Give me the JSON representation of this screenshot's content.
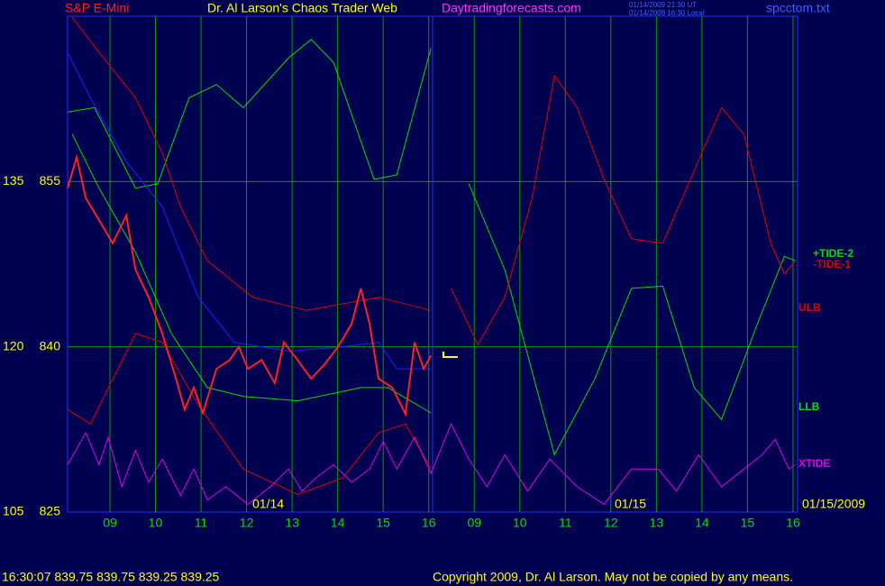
{
  "chart_data": {
    "type": "line",
    "title": "Dr. Al Larson's Chaos Trader Web",
    "symbol": "S&P E-Mini",
    "site": "Daytradingforecasts.com",
    "timestamps": [
      "01/14/2009 21:30 UT",
      "01/14/2009 16:30 Local"
    ],
    "file": "spcctom.txt",
    "date_labels": [
      "01/14",
      "01/15",
      "01/15/2009"
    ],
    "status": "16:30:07 839.75 839.75 839.25 839.25",
    "copyright": "Copyright 2009, Dr. Al Larson. May not be copied by any means.",
    "xlim": [
      0.07,
      16.1
    ],
    "xticks": [
      {
        "value": 1,
        "label": "09"
      },
      {
        "value": 2,
        "label": "10"
      },
      {
        "value": 3,
        "label": "11"
      },
      {
        "value": 4,
        "label": "12"
      },
      {
        "value": 5,
        "label": "13"
      },
      {
        "value": 6,
        "label": "14"
      },
      {
        "value": 7,
        "label": "15"
      },
      {
        "value": 8,
        "label": "16"
      },
      {
        "value": 9,
        "label": "09"
      },
      {
        "value": 10,
        "label": "10"
      },
      {
        "value": 11,
        "label": "11"
      },
      {
        "value": 12,
        "label": "12"
      },
      {
        "value": 13,
        "label": "13"
      },
      {
        "value": 14,
        "label": "14"
      },
      {
        "value": 15,
        "label": "15"
      },
      {
        "value": 16,
        "label": "16"
      }
    ],
    "ylim": [
      825,
      870
    ],
    "yticks": [
      825,
      840,
      855
    ],
    "y2lim": [
      105,
      150
    ],
    "y2ticks": [
      105,
      120,
      135
    ],
    "grid": true,
    "series": [
      {
        "name": "+TIDE-2",
        "color": "#00e000",
        "x": [
          0.07,
          0.66,
          1.56,
          2.05,
          2.74,
          3.34,
          3.93,
          4.92,
          5.42,
          5.91,
          6.8,
          7.3,
          8.05,
          8.13,
          8.88,
          9.67,
          10.76,
          11.65,
          12.45,
          13.14,
          13.83,
          14.43,
          15.22,
          15.81,
          16.05
        ],
        "values": [
          861.3,
          861.7,
          854.4,
          854.8,
          862.6,
          863.8,
          861.7,
          866.2,
          867.9,
          865.8,
          855.2,
          855.6,
          867.1,
          null,
          854.8,
          847.0,
          830.2,
          837.1,
          845.3,
          845.5,
          836.3,
          833.4,
          842.1,
          848.2,
          847.8
        ]
      },
      {
        "name": "-TIDE-1",
        "color": "#e00000",
        "x": [
          0.17,
          0.76,
          1.56,
          2.15,
          2.55,
          3.14,
          4.13,
          5.32,
          6.9,
          8.05,
          8.13,
          8.49,
          9.08,
          9.67,
          10.27,
          10.76,
          11.26,
          11.85,
          12.45,
          13.14,
          13.83,
          14.43,
          14.92,
          15.51,
          15.81,
          16.05
        ],
        "values": [
          869.9,
          866.7,
          862.6,
          857.6,
          852.7,
          847.8,
          844.5,
          843.3,
          844.5,
          843.3,
          null,
          845.3,
          840.2,
          844.5,
          853.5,
          864.6,
          861.7,
          855.2,
          849.8,
          849.4,
          856.0,
          861.7,
          859.3,
          849.4,
          846.6,
          847.8
        ]
      },
      {
        "name": "ULB",
        "color": "#e00000",
        "x": [
          0.07,
          0.57,
          1.56,
          2.15,
          2.94,
          3.93,
          5.12,
          6.11,
          6.9,
          7.49,
          8.05
        ],
        "values": [
          834.3,
          833.0,
          841.2,
          840.4,
          834.7,
          828.9,
          826.6,
          828.1,
          832.2,
          833.0,
          828.9
        ]
      },
      {
        "name": "LLB",
        "color": "#00e000",
        "x": [
          0.17,
          0.76,
          1.56,
          2.35,
          3.14,
          3.93,
          5.12,
          6.51,
          7.1,
          8.05
        ],
        "values": [
          859.3,
          854.4,
          848.6,
          841.2,
          836.3,
          835.5,
          835.1,
          836.3,
          836.3,
          834.0
        ]
      },
      {
        "color": "#2020ff",
        "x": [
          0.07,
          0.57,
          1.36,
          2.15,
          2.94,
          3.73,
          4.92,
          6.11,
          6.9,
          7.3,
          8.05
        ],
        "values": [
          866.7,
          862.6,
          856.8,
          852.7,
          844.5,
          840.4,
          839.6,
          840.0,
          840.4,
          838.0,
          838.0
        ]
      },
      {
        "name": "XTIDE",
        "color": "#e000e0",
        "x": [
          0.07,
          0.47,
          0.76,
          0.96,
          1.26,
          1.56,
          1.85,
          2.15,
          2.55,
          2.84,
          3.14,
          3.54,
          4.03,
          4.52,
          4.92,
          5.22,
          5.52,
          5.91,
          6.31,
          6.7,
          7.0,
          7.3,
          7.69,
          8.05,
          8.49,
          8.88,
          9.28,
          9.67,
          10.17,
          10.66,
          11.26,
          11.85,
          12.45,
          13.04,
          13.44,
          13.93,
          14.43,
          14.92,
          15.32,
          15.61,
          15.91,
          16.05
        ],
        "values": [
          829.3,
          832.2,
          829.3,
          831.8,
          827.3,
          830.6,
          827.7,
          829.8,
          826.5,
          828.9,
          826.1,
          827.3,
          825.7,
          827.3,
          828.9,
          826.9,
          828.1,
          829.3,
          827.7,
          828.9,
          831.4,
          828.9,
          831.8,
          828.5,
          833.0,
          829.8,
          827.3,
          830.2,
          826.9,
          829.8,
          827.3,
          825.7,
          828.9,
          828.9,
          826.9,
          830.2,
          827.3,
          828.9,
          830.2,
          831.6,
          828.9,
          829.3
        ]
      },
      {
        "color": "#ff2020",
        "x": [
          0.07,
          0.27,
          0.47,
          0.76,
          1.06,
          1.36,
          1.56,
          1.85,
          2.15,
          2.45,
          2.64,
          2.84,
          3.04,
          3.34,
          3.63,
          3.83,
          4.03,
          4.33,
          4.62,
          4.82,
          5.12,
          5.42,
          5.71,
          6.01,
          6.31,
          6.51,
          6.7,
          6.9,
          7.2,
          7.49,
          7.69,
          7.89,
          8.05
        ],
        "values": [
          854.4,
          857.2,
          853.5,
          851.5,
          849.4,
          851.9,
          847.0,
          844.5,
          841.2,
          837.1,
          834.3,
          836.3,
          834.0,
          838.0,
          838.8,
          840.0,
          838.0,
          838.8,
          836.7,
          840.4,
          838.8,
          837.1,
          838.4,
          840.0,
          842.1,
          845.3,
          842.1,
          837.1,
          836.3,
          833.9,
          840.4,
          838.0,
          839.2
        ]
      }
    ]
  }
}
